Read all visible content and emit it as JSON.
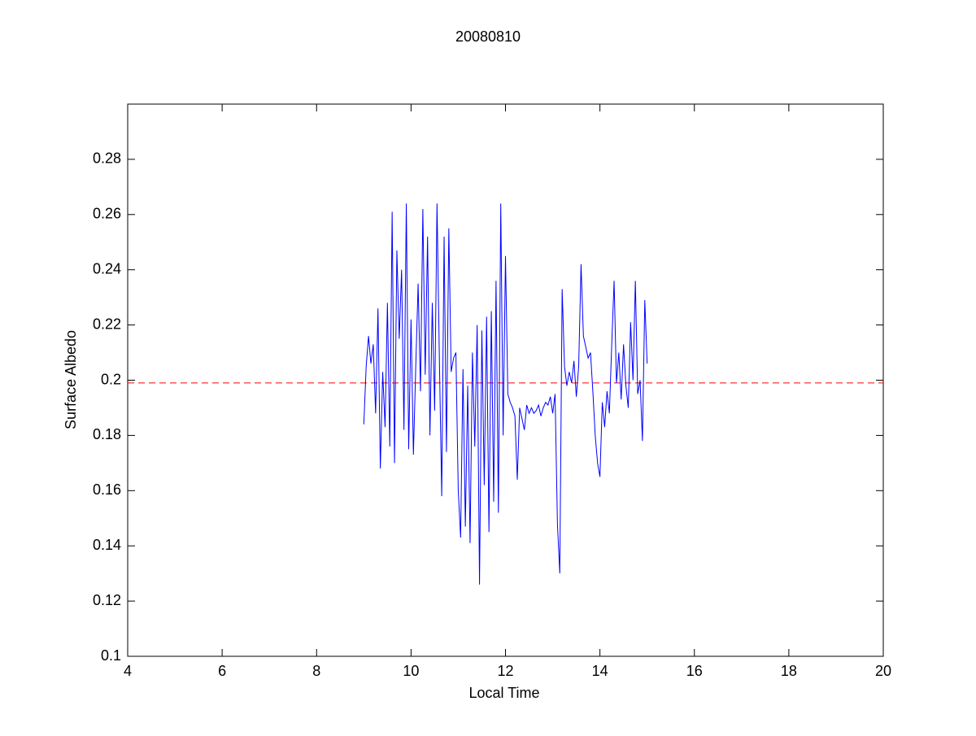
{
  "chart_data": {
    "type": "line",
    "title": "20080810",
    "x_label": "Local Time",
    "y_label": "Surface Albedo",
    "x": [
      9.0,
      9.05,
      9.1,
      9.15,
      9.2,
      9.25,
      9.3,
      9.35,
      9.4,
      9.45,
      9.5,
      9.55,
      9.6,
      9.65,
      9.7,
      9.75,
      9.8,
      9.85,
      9.9,
      9.95,
      10.0,
      10.05,
      10.1,
      10.15,
      10.2,
      10.25,
      10.3,
      10.35,
      10.4,
      10.45,
      10.5,
      10.55,
      10.6,
      10.65,
      10.7,
      10.75,
      10.8,
      10.85,
      10.9,
      10.95,
      11.0,
      11.05,
      11.1,
      11.15,
      11.2,
      11.25,
      11.3,
      11.35,
      11.4,
      11.45,
      11.5,
      11.55,
      11.6,
      11.65,
      11.7,
      11.75,
      11.8,
      11.85,
      11.9,
      11.95,
      12.0,
      12.05,
      12.1,
      12.15,
      12.2,
      12.25,
      12.3,
      12.35,
      12.4,
      12.45,
      12.5,
      12.55,
      12.6,
      12.65,
      12.7,
      12.75,
      12.8,
      12.85,
      12.9,
      12.95,
      13.0,
      13.05,
      13.1,
      13.15,
      13.2,
      13.25,
      13.3,
      13.35,
      13.4,
      13.45,
      13.5,
      13.55,
      13.6,
      13.65,
      13.7,
      13.75,
      13.8,
      13.85,
      13.9,
      13.95,
      14.0,
      14.05,
      14.1,
      14.15,
      14.2,
      14.25,
      14.3,
      14.35,
      14.4,
      14.45,
      14.5,
      14.55,
      14.6,
      14.65,
      14.7,
      14.75,
      14.8,
      14.85,
      14.9,
      14.95,
      15.0
    ],
    "series": [
      {
        "color": "#0000ff",
        "values": [
          0.184,
          0.205,
          0.216,
          0.206,
          0.213,
          0.188,
          0.226,
          0.168,
          0.203,
          0.183,
          0.228,
          0.176,
          0.261,
          0.17,
          0.247,
          0.215,
          0.24,
          0.182,
          0.264,
          0.175,
          0.222,
          0.173,
          0.205,
          0.235,
          0.196,
          0.262,
          0.202,
          0.252,
          0.18,
          0.228,
          0.189,
          0.264,
          0.208,
          0.158,
          0.252,
          0.174,
          0.255,
          0.203,
          0.208,
          0.21,
          0.16,
          0.143,
          0.204,
          0.147,
          0.198,
          0.141,
          0.21,
          0.176,
          0.22,
          0.126,
          0.218,
          0.162,
          0.223,
          0.145,
          0.225,
          0.156,
          0.236,
          0.152,
          0.264,
          0.18,
          0.245,
          0.195,
          0.192,
          0.19,
          0.187,
          0.164,
          0.19,
          0.186,
          0.182,
          0.191,
          0.188,
          0.19,
          0.188,
          0.189,
          0.191,
          0.187,
          0.19,
          0.192,
          0.191,
          0.194,
          0.188,
          0.195,
          0.148,
          0.13,
          0.233,
          0.205,
          0.198,
          0.203,
          0.199,
          0.207,
          0.194,
          0.205,
          0.242,
          0.216,
          0.212,
          0.208,
          0.21,
          0.196,
          0.18,
          0.17,
          0.165,
          0.192,
          0.183,
          0.196,
          0.188,
          0.213,
          0.236,
          0.199,
          0.21,
          0.193,
          0.213,
          0.198,
          0.19,
          0.221,
          0.2,
          0.236,
          0.195,
          0.2,
          0.178,
          0.229,
          0.206
        ]
      }
    ],
    "reference_line": {
      "value": 0.199,
      "color": "#ff0000"
    },
    "xlim": [
      4,
      20
    ],
    "xticks": [
      4,
      6,
      8,
      10,
      12,
      14,
      16,
      18,
      20
    ],
    "ylim": [
      0.1,
      0.3
    ],
    "yticks": [
      0.1,
      0.12,
      0.14,
      0.16,
      0.18,
      0.2,
      0.22,
      0.24,
      0.26,
      0.28
    ]
  }
}
